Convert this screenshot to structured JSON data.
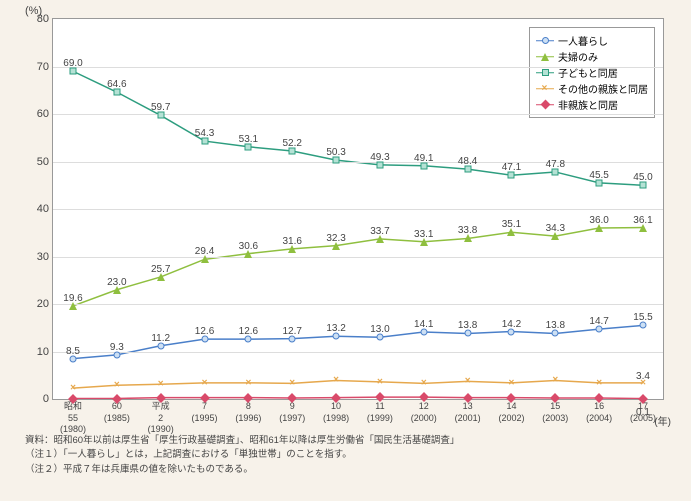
{
  "unit_label": "(%)",
  "x_unit": "(年)",
  "ylim": [
    0,
    80
  ],
  "ytick_step": 10,
  "x_categories": [
    {
      "era": "昭和",
      "eyr": "55",
      "wy": "(1980)"
    },
    {
      "era": "",
      "eyr": "60",
      "wy": "(1985)"
    },
    {
      "era": "平成",
      "eyr": "2",
      "wy": "(1990)"
    },
    {
      "era": "",
      "eyr": "7",
      "wy": "(1995)"
    },
    {
      "era": "",
      "eyr": "8",
      "wy": "(1996)"
    },
    {
      "era": "",
      "eyr": "9",
      "wy": "(1997)"
    },
    {
      "era": "",
      "eyr": "10",
      "wy": "(1998)"
    },
    {
      "era": "",
      "eyr": "11",
      "wy": "(1999)"
    },
    {
      "era": "",
      "eyr": "12",
      "wy": "(2000)"
    },
    {
      "era": "",
      "eyr": "13",
      "wy": "(2001)"
    },
    {
      "era": "",
      "eyr": "14",
      "wy": "(2002)"
    },
    {
      "era": "",
      "eyr": "15",
      "wy": "(2003)"
    },
    {
      "era": "",
      "eyr": "16",
      "wy": "(2004)"
    },
    {
      "era": "",
      "eyr": "17",
      "wy": "(2005)"
    }
  ],
  "series": [
    {
      "name": "一人暮らし",
      "color": "#4a7fc9",
      "marker": "ci",
      "fill": "#cde0f4",
      "values": [
        8.5,
        9.3,
        11.2,
        12.6,
        12.6,
        12.7,
        13.2,
        13.0,
        14.1,
        13.8,
        14.2,
        13.8,
        14.7,
        15.5
      ],
      "label_dy": -13
    },
    {
      "name": "夫婦のみ",
      "color": "#8fbf3f",
      "marker": "tr",
      "fill": "#8fbf3f",
      "values": [
        19.6,
        23.0,
        25.7,
        29.4,
        30.6,
        31.6,
        32.3,
        33.7,
        33.1,
        33.8,
        35.1,
        34.3,
        36.0,
        36.1
      ],
      "label_dy": -13
    },
    {
      "name": "子どもと同居",
      "color": "#2d9d7f",
      "marker": "sq",
      "fill": "#b5e2d5",
      "values": [
        69.0,
        64.6,
        59.7,
        54.3,
        53.1,
        52.2,
        50.3,
        49.3,
        49.1,
        48.4,
        47.1,
        47.8,
        45.5,
        45.0
      ],
      "label_dy": -13
    },
    {
      "name": "その他の親族と同居",
      "color": "#e6a84d",
      "marker": "x",
      "fill": "#e6a84d",
      "values": [
        2.3,
        2.9,
        3.1,
        3.4,
        3.4,
        3.3,
        3.9,
        3.6,
        3.3,
        3.7,
        3.4,
        3.9,
        3.4,
        3.4
      ],
      "label_dy": -12,
      "end_only": true
    },
    {
      "name": "非親族と同居",
      "color": "#d94a6a",
      "marker": "di",
      "fill": "#d94a6a",
      "values": [
        0.1,
        0.1,
        0.3,
        0.3,
        0.3,
        0.2,
        0.3,
        0.4,
        0.4,
        0.3,
        0.3,
        0.2,
        0.2,
        0.1
      ],
      "label_dy": 8,
      "end_only": true
    }
  ],
  "notes": [
    "資料：昭和60年以前は厚生省「厚生行政基礎調査」、昭和61年以降は厚生労働省「国民生活基礎調査」",
    "（注１）「一人暮らし」とは，上記調査における「単独世帯」のことを指す。",
    "（注２）平成７年は兵庫県の値を除いたものである。"
  ]
}
